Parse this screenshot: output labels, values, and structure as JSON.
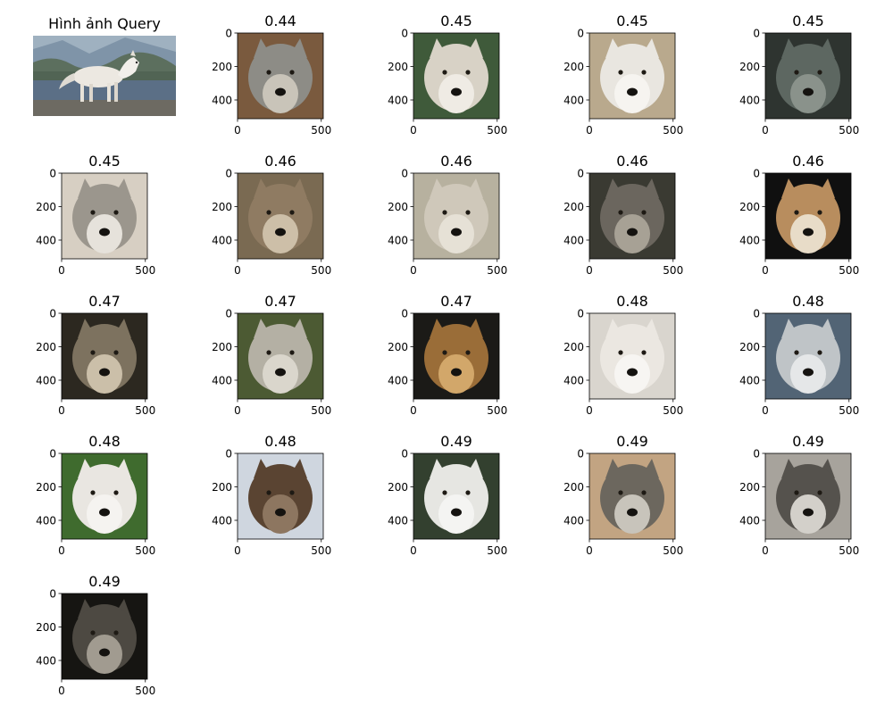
{
  "chart_data": {
    "type": "image-grid",
    "query": {
      "title": "Hình ảnh Query",
      "image": "wolf-standing-in-forest",
      "axes_visible": false
    },
    "xticks": [
      "0",
      "500"
    ],
    "yticks": [
      "0",
      "200",
      "400"
    ],
    "results": [
      {
        "score": "0.44",
        "image": "gray-wolf-face"
      },
      {
        "score": "0.45",
        "image": "pale-wolf-face"
      },
      {
        "score": "0.45",
        "image": "white-wolf-open-mouth"
      },
      {
        "score": "0.45",
        "image": "dark-gray-wolf-face"
      },
      {
        "score": "0.45",
        "image": "gray-wolf-snow"
      },
      {
        "score": "0.46",
        "image": "brown-wolf-face"
      },
      {
        "score": "0.46",
        "image": "light-wolf-face"
      },
      {
        "score": "0.46",
        "image": "wolf-tongue-out"
      },
      {
        "score": "0.46",
        "image": "tan-wolf-dark-background"
      },
      {
        "score": "0.47",
        "image": "wolf-snarling"
      },
      {
        "score": "0.47",
        "image": "wolf-green-background"
      },
      {
        "score": "0.47",
        "image": "wolf-brown-dark-background"
      },
      {
        "score": "0.48",
        "image": "white-wolf-face"
      },
      {
        "score": "0.48",
        "image": "blue-gray-wolf-face"
      },
      {
        "score": "0.48",
        "image": "white-wolf-grass"
      },
      {
        "score": "0.48",
        "image": "brown-wolf-snow"
      },
      {
        "score": "0.49",
        "image": "white-wolf-profile"
      },
      {
        "score": "0.49",
        "image": "gray-wolf-close"
      },
      {
        "score": "0.49",
        "image": "gray-wolf-stare"
      },
      {
        "score": "0.49",
        "image": "dark-wolf-face"
      }
    ]
  }
}
